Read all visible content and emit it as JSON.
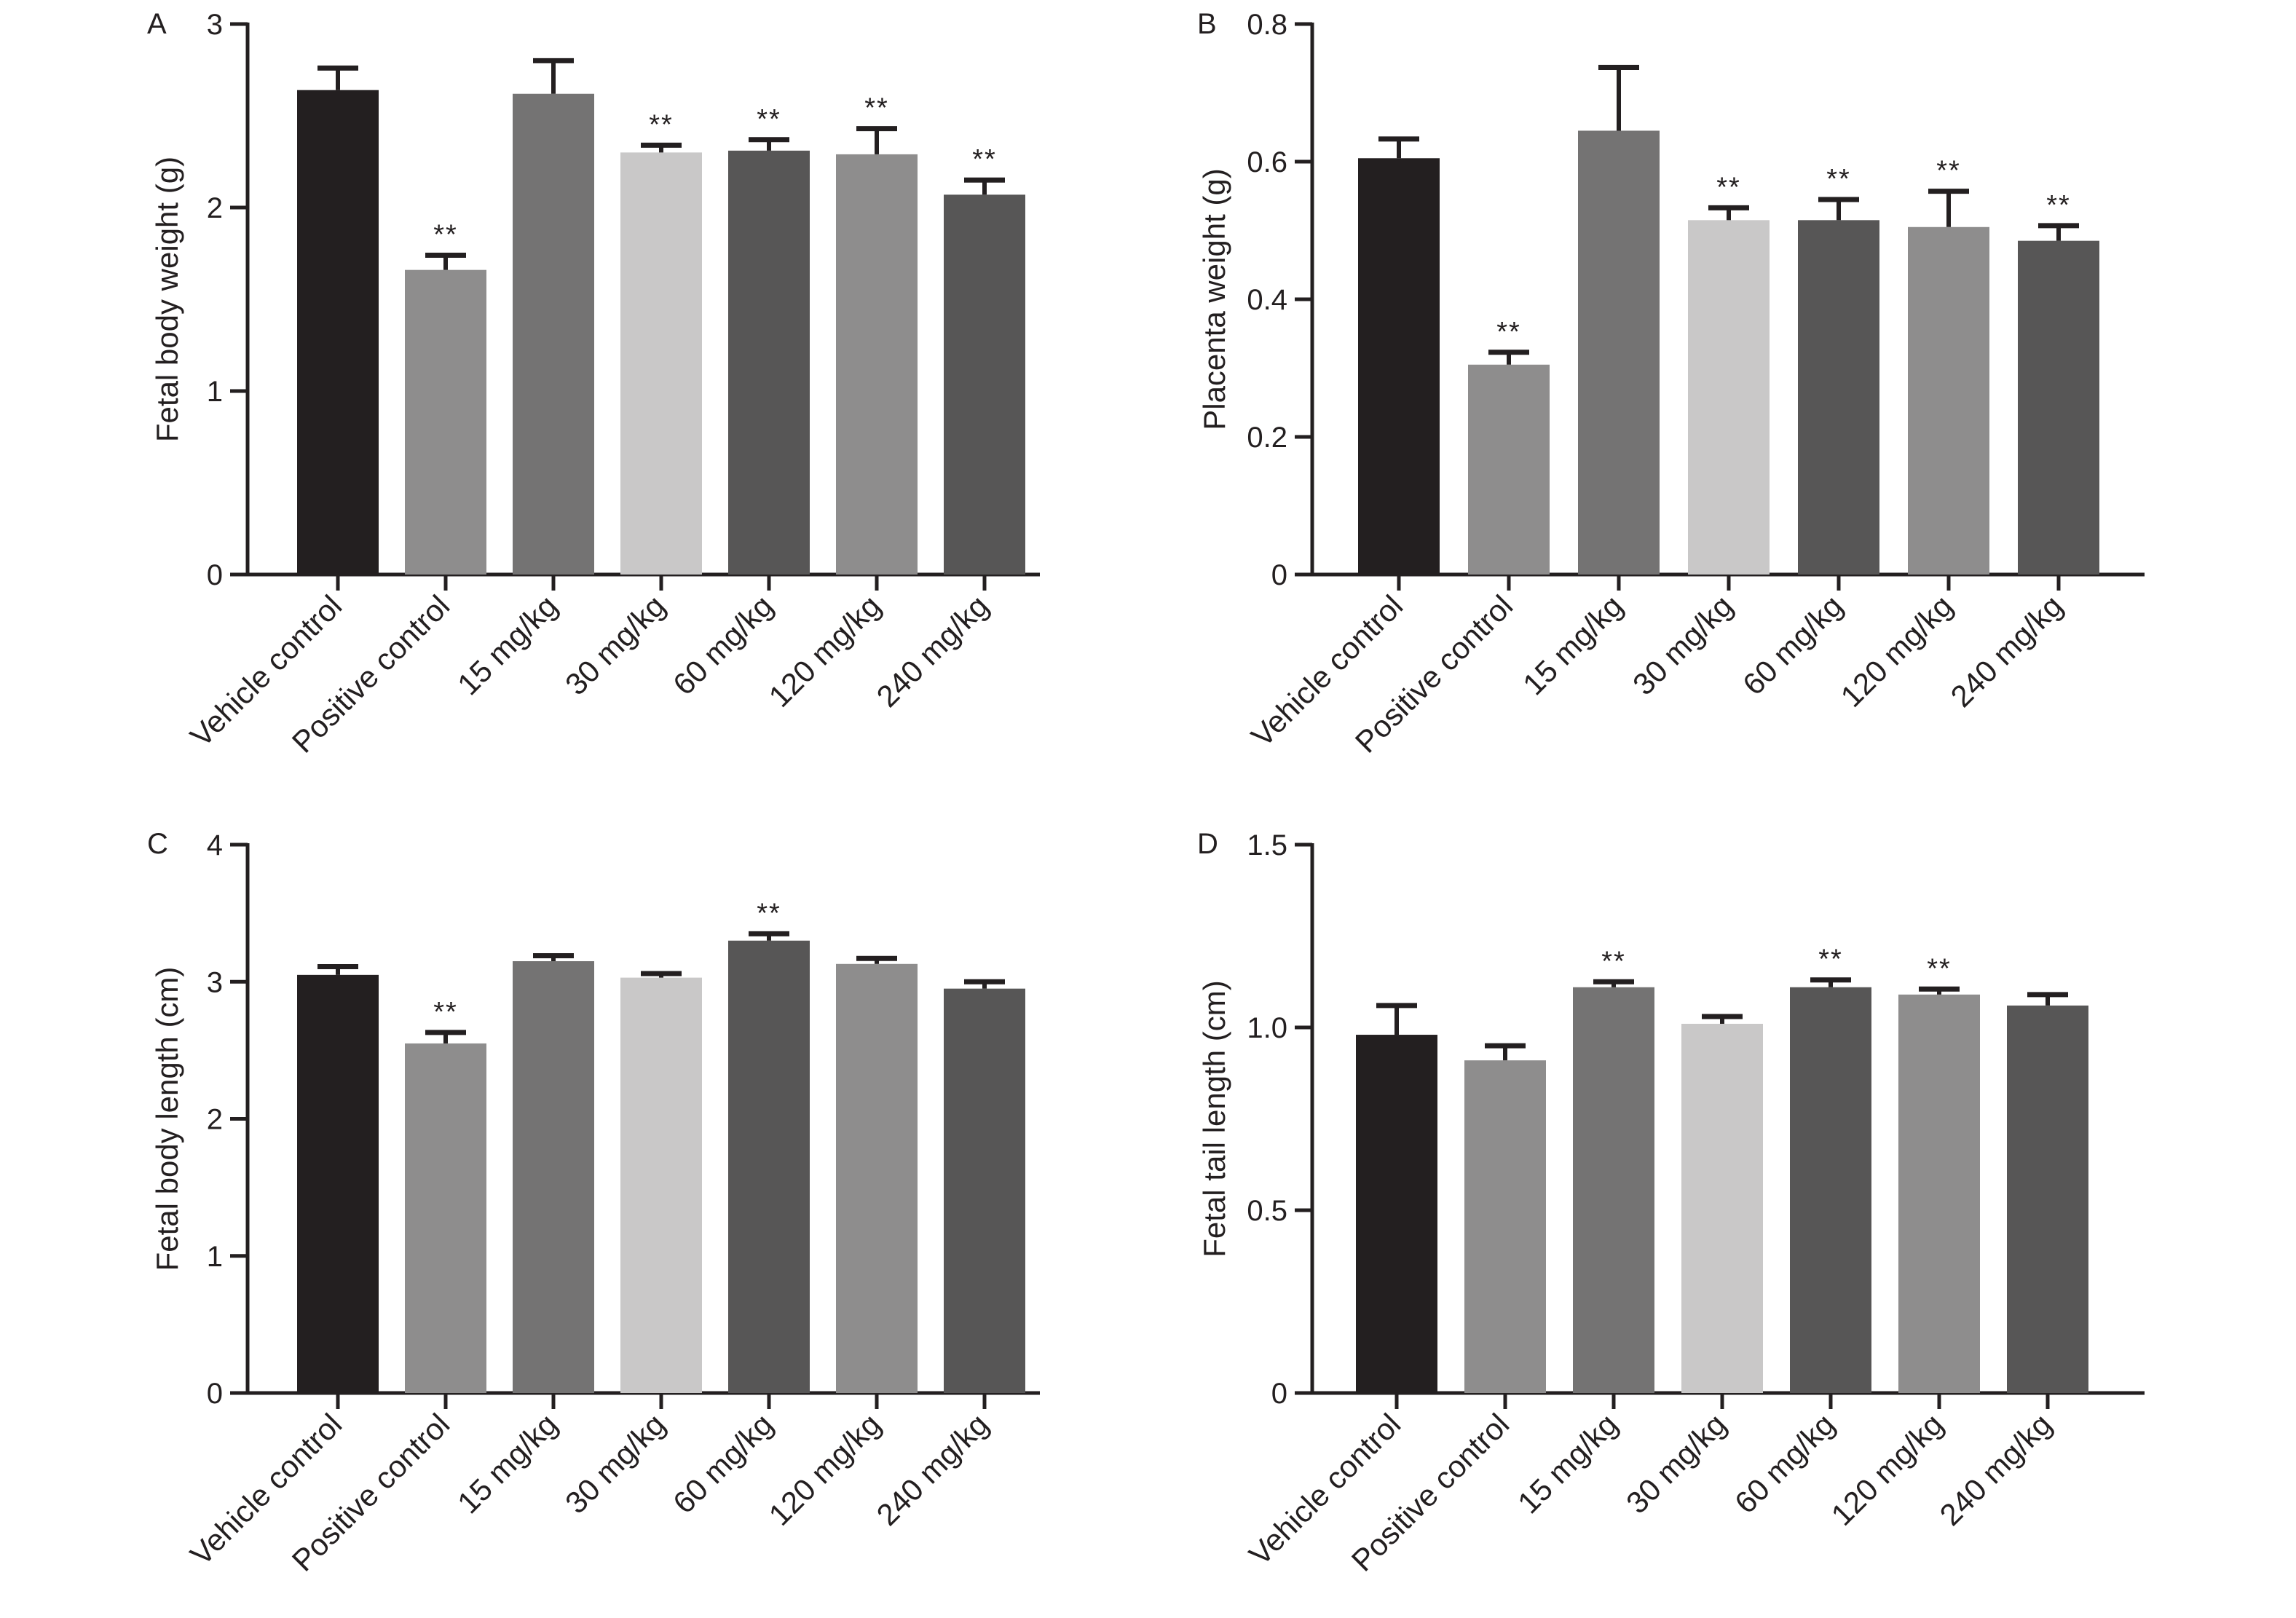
{
  "colors": {
    "axis": "#231f20",
    "error_bar": "#231f20",
    "bar_fills": [
      "#231f20",
      "#8e8d8d",
      "#747373",
      "#c9c8c8",
      "#575656",
      "#8e8d8d",
      "#575656"
    ]
  },
  "chart_data": [
    {
      "type": "bar",
      "panel_label": "A",
      "ylabel": "Fetal body weight (g)",
      "xlabel": "",
      "categories": [
        "Vehicle control",
        "Positive control",
        "15 mg/kg",
        "30 mg/kg",
        "60 mg/kg",
        "120 mg/kg",
        "240 mg/kg"
      ],
      "values": [
        2.64,
        1.66,
        2.62,
        2.3,
        2.31,
        2.29,
        2.07
      ],
      "error_upper": [
        0.12,
        0.08,
        0.18,
        0.04,
        0.06,
        0.14,
        0.08
      ],
      "significance": [
        "",
        "**",
        "",
        "**",
        "**",
        "**",
        "**"
      ],
      "ylim": [
        0,
        3
      ],
      "yticks": [
        0,
        1,
        2,
        3
      ],
      "ytick_labels": [
        "0",
        "1",
        "2",
        "3"
      ],
      "grid": false
    },
    {
      "type": "bar",
      "panel_label": "B",
      "ylabel": "Placenta weight (g)",
      "xlabel": "",
      "categories": [
        "Vehicle control",
        "Positive control",
        "15 mg/kg",
        "30 mg/kg",
        "60 mg/kg",
        "120 mg/kg",
        "240 mg/kg"
      ],
      "values": [
        0.605,
        0.305,
        0.645,
        0.515,
        0.515,
        0.505,
        0.485
      ],
      "error_upper": [
        0.028,
        0.018,
        0.092,
        0.018,
        0.03,
        0.052,
        0.022
      ],
      "significance": [
        "",
        "**",
        "",
        "**",
        "**",
        "**",
        "**"
      ],
      "ylim": [
        0,
        0.8
      ],
      "yticks": [
        0,
        0.2,
        0.4,
        0.6,
        0.8
      ],
      "ytick_labels": [
        "0",
        "0.2",
        "0.4",
        "0.6",
        "0.8"
      ],
      "grid": false
    },
    {
      "type": "bar",
      "panel_label": "C",
      "ylabel": "Fetal body length (cm)",
      "xlabel": "",
      "categories": [
        "Vehicle control",
        "Positive control",
        "15 mg/kg",
        "30 mg/kg",
        "60 mg/kg",
        "120 mg/kg",
        "240 mg/kg"
      ],
      "values": [
        3.05,
        2.55,
        3.15,
        3.03,
        3.3,
        3.13,
        2.95
      ],
      "error_upper": [
        0.06,
        0.08,
        0.04,
        0.03,
        0.05,
        0.04,
        0.05
      ],
      "significance": [
        "",
        "**",
        "",
        "",
        "**",
        "",
        ""
      ],
      "ylim": [
        0,
        4
      ],
      "yticks": [
        0,
        1,
        2,
        3,
        4
      ],
      "ytick_labels": [
        "0",
        "1",
        "2",
        "3",
        "4"
      ],
      "grid": false
    },
    {
      "type": "bar",
      "panel_label": "D",
      "ylabel": "Fetal tail length (cm)",
      "xlabel": "",
      "categories": [
        "Vehicle control",
        "Positive control",
        "15 mg/kg",
        "30 mg/kg",
        "60 mg/kg",
        "120 mg/kg",
        "240 mg/kg"
      ],
      "values": [
        0.98,
        0.91,
        1.11,
        1.01,
        1.11,
        1.09,
        1.06
      ],
      "error_upper": [
        0.08,
        0.04,
        0.015,
        0.02,
        0.02,
        0.015,
        0.03
      ],
      "significance": [
        "",
        "",
        "**",
        "",
        "**",
        "**",
        ""
      ],
      "ylim": [
        0,
        1.5
      ],
      "yticks": [
        0,
        0.5,
        1.0,
        1.5
      ],
      "ytick_labels": [
        "0",
        "0.5",
        "1.0",
        "1.5"
      ],
      "grid": false
    }
  ]
}
